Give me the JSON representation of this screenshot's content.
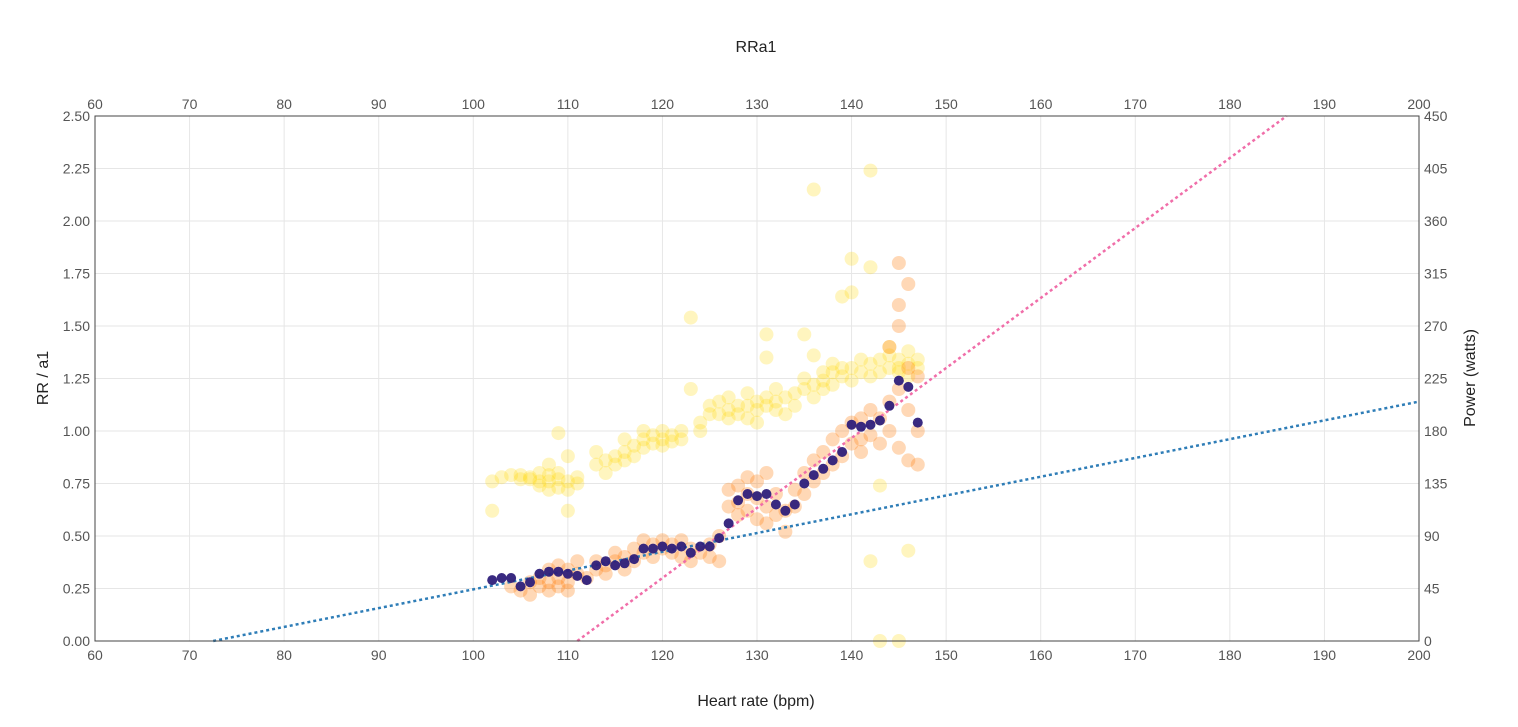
{
  "chart_data": {
    "type": "scatter",
    "title": "RRa1",
    "xlabel": "Heart rate (bpm)",
    "ylabel": "RR / a1",
    "y2label": "Power (watts)",
    "xlim": [
      60,
      200
    ],
    "ylim": [
      0,
      2.5
    ],
    "y2lim": [
      0,
      450
    ],
    "x_ticks": [
      "60",
      "70",
      "80",
      "90",
      "100",
      "110",
      "120",
      "130",
      "140",
      "150",
      "160",
      "170",
      "180",
      "190",
      "200"
    ],
    "y_ticks": [
      "0.00",
      "0.25",
      "0.50",
      "0.75",
      "1.00",
      "1.25",
      "1.50",
      "1.75",
      "2.00",
      "2.25",
      "2.50"
    ],
    "y2_ticks": [
      "0",
      "45",
      "90",
      "135",
      "180",
      "225",
      "270",
      "315",
      "360",
      "405",
      "450"
    ],
    "grid": true,
    "colors": {
      "power": "#FFD700",
      "rr": "#FF7F0E",
      "a1": "#2E1F7A",
      "a1_fit": "#F06EA9",
      "rr_fit": "#2E7DB7"
    },
    "power_series": {
      "color": "#FFD700",
      "points": [
        [
          102,
          0.62
        ],
        [
          102,
          0.76
        ],
        [
          103,
          0.78
        ],
        [
          104,
          0.79
        ],
        [
          105,
          0.77
        ],
        [
          105,
          0.79
        ],
        [
          106,
          0.78
        ],
        [
          106,
          0.77
        ],
        [
          107,
          0.8
        ],
        [
          107,
          0.76
        ],
        [
          107,
          0.74
        ],
        [
          108,
          0.76
        ],
        [
          108,
          0.72
        ],
        [
          108,
          0.79
        ],
        [
          108,
          0.84
        ],
        [
          109,
          0.73
        ],
        [
          109,
          0.77
        ],
        [
          109,
          0.8
        ],
        [
          109,
          0.99
        ],
        [
          110,
          0.76
        ],
        [
          110,
          0.72
        ],
        [
          110,
          0.62
        ],
        [
          110,
          0.88
        ],
        [
          111,
          0.78
        ],
        [
          111,
          0.75
        ],
        [
          113,
          0.84
        ],
        [
          113,
          0.9
        ],
        [
          114,
          0.86
        ],
        [
          114,
          0.8
        ],
        [
          115,
          0.88
        ],
        [
          115,
          0.84
        ],
        [
          116,
          0.9
        ],
        [
          116,
          0.86
        ],
        [
          116,
          0.96
        ],
        [
          117,
          0.93
        ],
        [
          117,
          0.88
        ],
        [
          118,
          0.96
        ],
        [
          118,
          0.92
        ],
        [
          118,
          1.0
        ],
        [
          119,
          0.98
        ],
        [
          119,
          0.94
        ],
        [
          120,
          0.96
        ],
        [
          120,
          1.0
        ],
        [
          120,
          0.93
        ],
        [
          121,
          0.98
        ],
        [
          121,
          0.95
        ],
        [
          122,
          0.96
        ],
        [
          122,
          1.0
        ],
        [
          123,
          1.54
        ],
        [
          123,
          1.2
        ],
        [
          124,
          1.04
        ],
        [
          124,
          1.0
        ],
        [
          125,
          1.08
        ],
        [
          125,
          1.12
        ],
        [
          126,
          1.08
        ],
        [
          126,
          1.14
        ],
        [
          127,
          1.1
        ],
        [
          127,
          1.06
        ],
        [
          127,
          1.16
        ],
        [
          128,
          1.08
        ],
        [
          128,
          1.12
        ],
        [
          129,
          1.06
        ],
        [
          129,
          1.12
        ],
        [
          129,
          1.18
        ],
        [
          130,
          1.1
        ],
        [
          130,
          1.14
        ],
        [
          130,
          1.04
        ],
        [
          131,
          1.12
        ],
        [
          131,
          1.16
        ],
        [
          131,
          1.35
        ],
        [
          131,
          1.46
        ],
        [
          132,
          1.1
        ],
        [
          132,
          1.14
        ],
        [
          132,
          1.2
        ],
        [
          133,
          1.08
        ],
        [
          133,
          1.16
        ],
        [
          134,
          1.12
        ],
        [
          134,
          1.18
        ],
        [
          135,
          1.2
        ],
        [
          135,
          1.25
        ],
        [
          135,
          1.46
        ],
        [
          136,
          1.22
        ],
        [
          136,
          1.16
        ],
        [
          136,
          1.36
        ],
        [
          136,
          2.15
        ],
        [
          137,
          1.2
        ],
        [
          137,
          1.24
        ],
        [
          137,
          1.28
        ],
        [
          138,
          1.22
        ],
        [
          138,
          1.28
        ],
        [
          138,
          1.32
        ],
        [
          139,
          1.26
        ],
        [
          139,
          1.3
        ],
        [
          139,
          1.64
        ],
        [
          140,
          1.24
        ],
        [
          140,
          1.3
        ],
        [
          140,
          1.66
        ],
        [
          140,
          1.82
        ],
        [
          141,
          1.28
        ],
        [
          141,
          1.34
        ],
        [
          142,
          1.26
        ],
        [
          142,
          1.32
        ],
        [
          142,
          1.78
        ],
        [
          142,
          2.24
        ],
        [
          143,
          1.28
        ],
        [
          143,
          1.34
        ],
        [
          143,
          0.74
        ],
        [
          144,
          1.3
        ],
        [
          144,
          1.36
        ],
        [
          144,
          1.4
        ],
        [
          145,
          1.3
        ],
        [
          145,
          1.34
        ],
        [
          145,
          1.28
        ],
        [
          146,
          1.32
        ],
        [
          146,
          1.38
        ],
        [
          146,
          0.43
        ],
        [
          146,
          1.26
        ],
        [
          147,
          1.3
        ],
        [
          147,
          1.34
        ],
        [
          142,
          0.38
        ],
        [
          143,
          0.0
        ],
        [
          145,
          0.0
        ]
      ]
    },
    "rr_series": {
      "color": "#FF7F0E",
      "points": [
        [
          104,
          0.26
        ],
        [
          105,
          0.24
        ],
        [
          106,
          0.22
        ],
        [
          106,
          0.28
        ],
        [
          107,
          0.3
        ],
        [
          107,
          0.26
        ],
        [
          108,
          0.34
        ],
        [
          108,
          0.28
        ],
        [
          108,
          0.24
        ],
        [
          109,
          0.36
        ],
        [
          109,
          0.3
        ],
        [
          109,
          0.26
        ],
        [
          110,
          0.34
        ],
        [
          110,
          0.28
        ],
        [
          110,
          0.24
        ],
        [
          111,
          0.32
        ],
        [
          111,
          0.38
        ],
        [
          112,
          0.3
        ],
        [
          113,
          0.34
        ],
        [
          113,
          0.38
        ],
        [
          114,
          0.36
        ],
        [
          114,
          0.32
        ],
        [
          115,
          0.38
        ],
        [
          115,
          0.42
        ],
        [
          116,
          0.34
        ],
        [
          116,
          0.4
        ],
        [
          117,
          0.38
        ],
        [
          117,
          0.44
        ],
        [
          118,
          0.42
        ],
        [
          118,
          0.48
        ],
        [
          119,
          0.46
        ],
        [
          119,
          0.4
        ],
        [
          120,
          0.44
        ],
        [
          120,
          0.48
        ],
        [
          121,
          0.42
        ],
        [
          121,
          0.46
        ],
        [
          122,
          0.4
        ],
        [
          122,
          0.48
        ],
        [
          123,
          0.44
        ],
        [
          123,
          0.38
        ],
        [
          124,
          0.42
        ],
        [
          125,
          0.46
        ],
        [
          125,
          0.4
        ],
        [
          126,
          0.38
        ],
        [
          126,
          0.5
        ],
        [
          127,
          0.64
        ],
        [
          127,
          0.72
        ],
        [
          128,
          0.66
        ],
        [
          128,
          0.74
        ],
        [
          128,
          0.6
        ],
        [
          129,
          0.7
        ],
        [
          129,
          0.78
        ],
        [
          129,
          0.62
        ],
        [
          130,
          0.58
        ],
        [
          130,
          0.68
        ],
        [
          130,
          0.76
        ],
        [
          131,
          0.64
        ],
        [
          131,
          0.8
        ],
        [
          131,
          0.56
        ],
        [
          132,
          0.6
        ],
        [
          132,
          0.7
        ],
        [
          133,
          0.52
        ],
        [
          133,
          0.62
        ],
        [
          134,
          0.64
        ],
        [
          134,
          0.72
        ],
        [
          135,
          0.7
        ],
        [
          135,
          0.8
        ],
        [
          136,
          0.76
        ],
        [
          136,
          0.86
        ],
        [
          137,
          0.8
        ],
        [
          137,
          0.9
        ],
        [
          138,
          0.84
        ],
        [
          138,
          0.96
        ],
        [
          139,
          0.88
        ],
        [
          139,
          1.0
        ],
        [
          140,
          0.94
        ],
        [
          140,
          1.04
        ],
        [
          141,
          0.96
        ],
        [
          141,
          1.06
        ],
        [
          141,
          0.9
        ],
        [
          142,
          0.98
        ],
        [
          142,
          1.1
        ],
        [
          143,
          0.94
        ],
        [
          143,
          1.06
        ],
        [
          144,
          1.0
        ],
        [
          144,
          1.14
        ],
        [
          144,
          1.4
        ],
        [
          145,
          1.2
        ],
        [
          145,
          1.6
        ],
        [
          145,
          1.5
        ],
        [
          145,
          0.92
        ],
        [
          145,
          1.8
        ],
        [
          146,
          1.3
        ],
        [
          146,
          1.7
        ],
        [
          146,
          1.1
        ],
        [
          146,
          0.86
        ],
        [
          147,
          1.26
        ],
        [
          147,
          1.0
        ],
        [
          147,
          0.84
        ]
      ]
    },
    "a1_series": {
      "color": "#2E1F7A",
      "points": [
        [
          102,
          0.29
        ],
        [
          103,
          0.3
        ],
        [
          104,
          0.3
        ],
        [
          105,
          0.26
        ],
        [
          106,
          0.28
        ],
        [
          107,
          0.32
        ],
        [
          108,
          0.33
        ],
        [
          109,
          0.33
        ],
        [
          110,
          0.32
        ],
        [
          111,
          0.31
        ],
        [
          112,
          0.29
        ],
        [
          113,
          0.36
        ],
        [
          114,
          0.38
        ],
        [
          115,
          0.36
        ],
        [
          116,
          0.37
        ],
        [
          117,
          0.39
        ],
        [
          118,
          0.44
        ],
        [
          119,
          0.44
        ],
        [
          120,
          0.45
        ],
        [
          121,
          0.44
        ],
        [
          122,
          0.45
        ],
        [
          123,
          0.42
        ],
        [
          124,
          0.45
        ],
        [
          125,
          0.45
        ],
        [
          126,
          0.49
        ],
        [
          127,
          0.56
        ],
        [
          128,
          0.67
        ],
        [
          129,
          0.7
        ],
        [
          130,
          0.69
        ],
        [
          131,
          0.7
        ],
        [
          132,
          0.65
        ],
        [
          133,
          0.62
        ],
        [
          134,
          0.65
        ],
        [
          135,
          0.75
        ],
        [
          136,
          0.79
        ],
        [
          137,
          0.82
        ],
        [
          138,
          0.86
        ],
        [
          139,
          0.9
        ],
        [
          140,
          1.03
        ],
        [
          141,
          1.02
        ],
        [
          142,
          1.03
        ],
        [
          143,
          1.05
        ],
        [
          144,
          1.12
        ],
        [
          145,
          1.24
        ],
        [
          146,
          1.21
        ],
        [
          147,
          1.04
        ]
      ]
    },
    "a1_trendline": {
      "color": "#F06EA9",
      "x": [
        111.0,
        186.0
      ],
      "y": [
        0.0,
        2.5
      ]
    },
    "rr_trendline": {
      "color": "#2E7DB7",
      "x": [
        72.5,
        200.0
      ],
      "y": [
        0.0,
        1.14
      ]
    }
  }
}
